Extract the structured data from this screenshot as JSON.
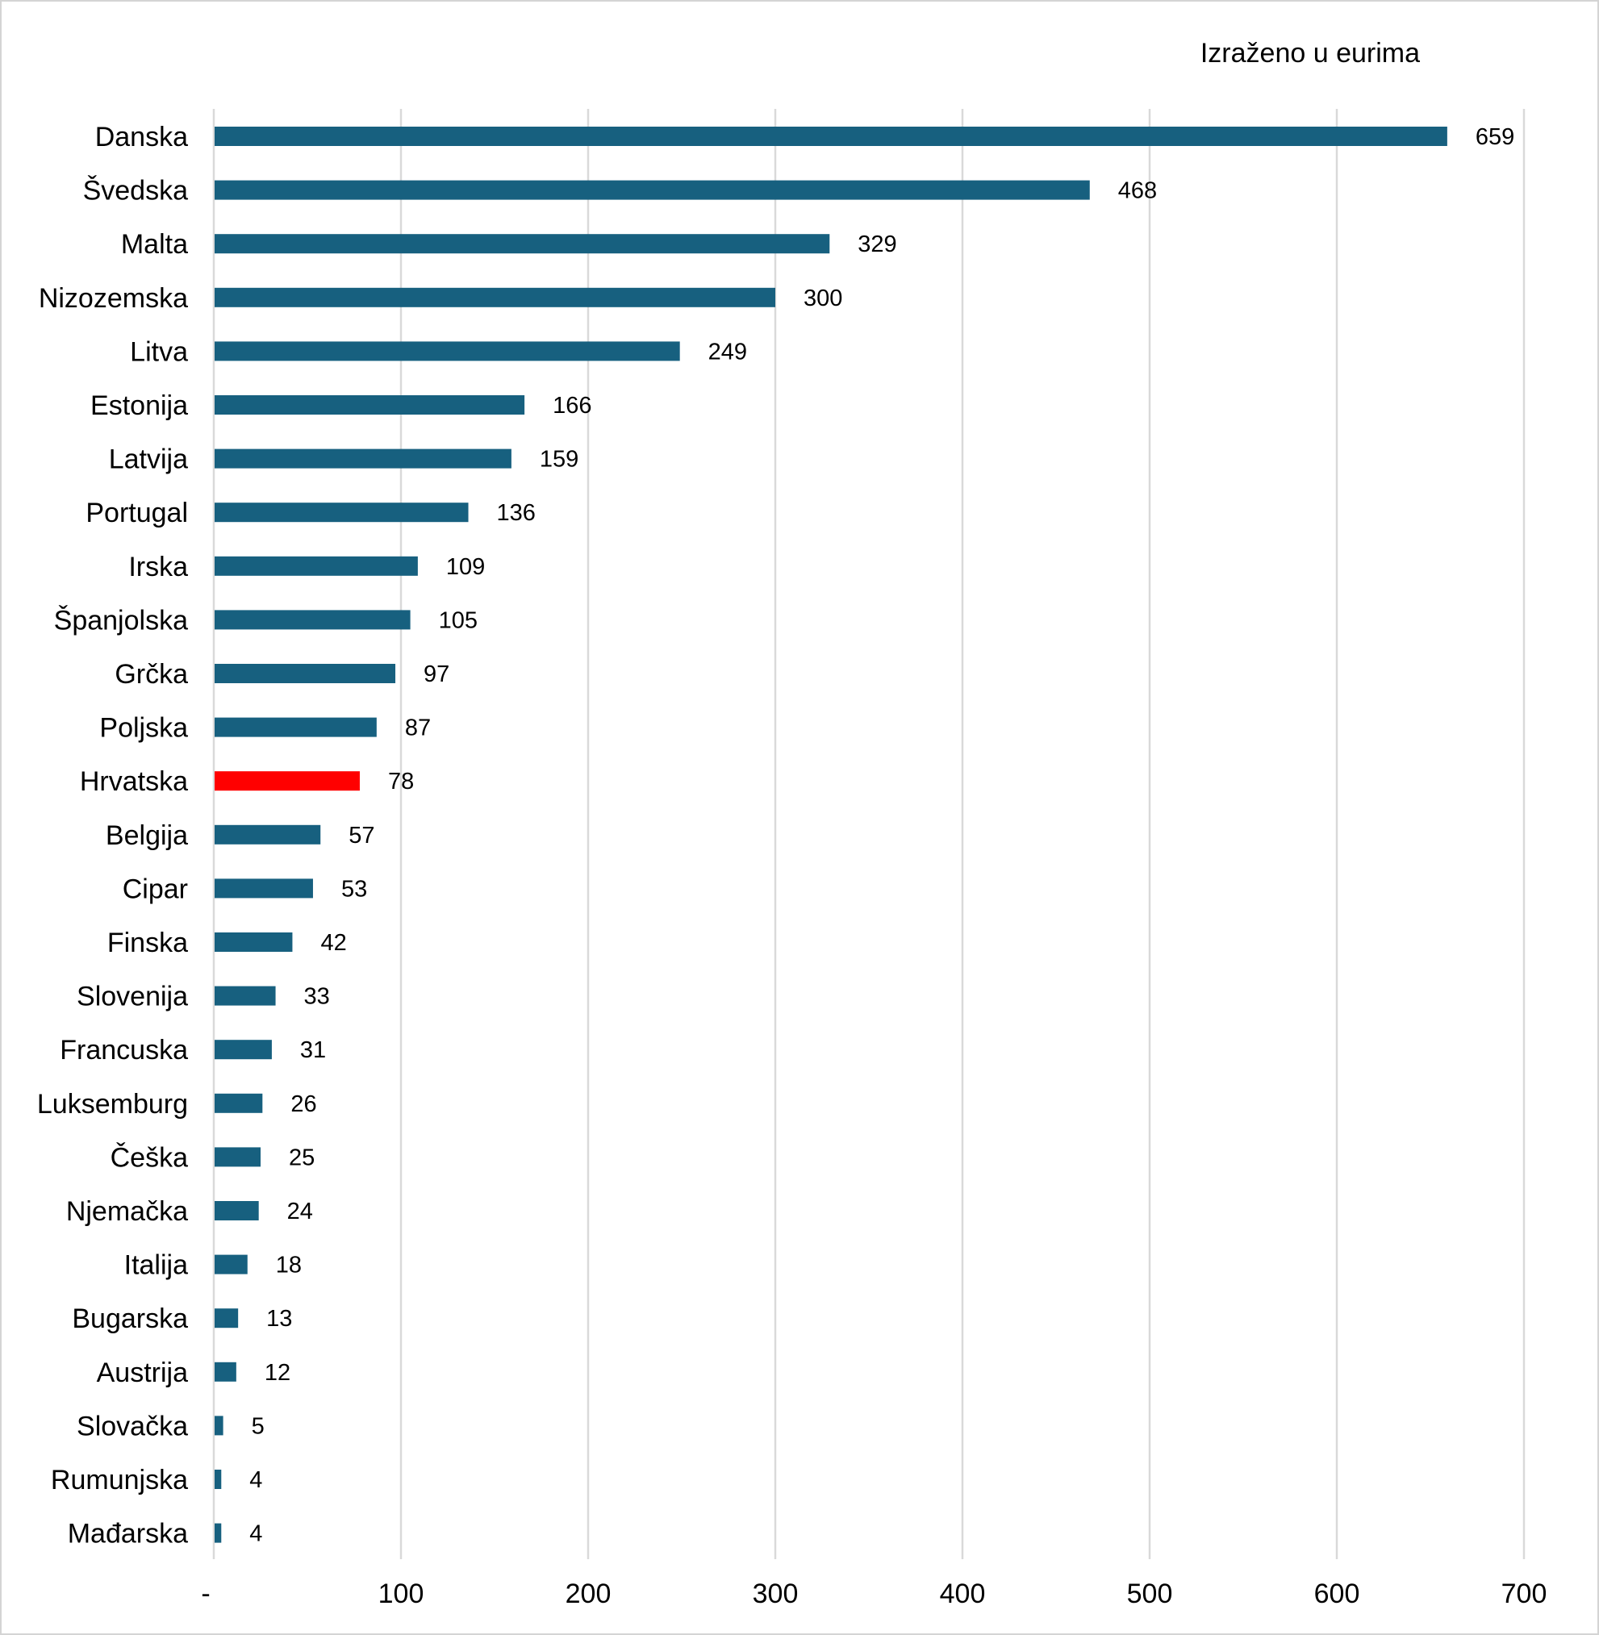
{
  "chart_data": {
    "type": "bar",
    "orientation": "horizontal",
    "unit_note": "Izraženo u eurima",
    "categories": [
      "Danska",
      "Švedska",
      "Malta",
      "Nizozemska",
      "Litva",
      "Estonija",
      "Latvija",
      "Portugal",
      "Irska",
      "Španjolska",
      "Grčka",
      "Poljska",
      "Hrvatska",
      "Belgija",
      "Cipar",
      "Finska",
      "Slovenija",
      "Francuska",
      "Luksemburg",
      "Češka",
      "Njemačka",
      "Italija",
      "Bugarska",
      "Austrija",
      "Slovačka",
      "Rumunjska",
      "Mađarska"
    ],
    "values": [
      659,
      468,
      329,
      300,
      249,
      166,
      159,
      136,
      109,
      105,
      97,
      87,
      78,
      57,
      53,
      42,
      33,
      31,
      26,
      25,
      24,
      18,
      13,
      12,
      5,
      4,
      4
    ],
    "data_labels": [
      "659",
      "468",
      "329",
      "300",
      "249",
      "166",
      "159",
      "136",
      "109",
      "105",
      "97",
      "87",
      "78",
      "57",
      "53",
      "42",
      "33",
      "31",
      "26",
      "25",
      "24",
      "18",
      "13",
      "12",
      "5",
      "4",
      "4"
    ],
    "xlim": [
      0,
      700
    ],
    "xticks": [
      0,
      100,
      200,
      300,
      400,
      500,
      600,
      700
    ],
    "xtick_labels": [
      "-",
      "100",
      "200",
      "300",
      "400",
      "500",
      "600",
      "700"
    ],
    "grid": true,
    "legend": "none",
    "bar_color": "#17607f",
    "highlight_category": "Hrvatska",
    "highlight_color": "#ff0000"
  }
}
